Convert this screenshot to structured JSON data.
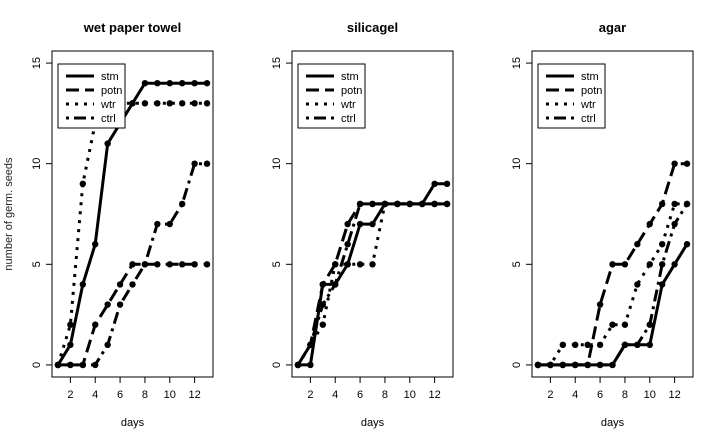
{
  "chart_data": [
    {
      "type": "line",
      "title": "wet paper towel",
      "xlabel": "days",
      "ylabel": "number of germ. seeds",
      "x": [
        1,
        2,
        3,
        4,
        5,
        6,
        7,
        8,
        9,
        10,
        11,
        12,
        13
      ],
      "xlim": [
        1,
        13
      ],
      "ylim": [
        0,
        15
      ],
      "xticks": [
        2,
        4,
        6,
        8,
        10,
        12
      ],
      "yticks": [
        0,
        5,
        10,
        15
      ],
      "grid": false,
      "legend_position": "top-left",
      "series": [
        {
          "name": "stm",
          "values": [
            0,
            1,
            4,
            6,
            11,
            12,
            13,
            14,
            14,
            14,
            14,
            14,
            14
          ]
        },
        {
          "name": "potn",
          "values": [
            0,
            0,
            0,
            2,
            3,
            4,
            5,
            5,
            5,
            5,
            5,
            5,
            5
          ]
        },
        {
          "name": "wtr",
          "values": [
            0,
            2,
            9,
            12,
            13,
            13,
            13,
            13,
            13,
            13,
            13,
            13,
            13
          ]
        },
        {
          "name": "ctrl",
          "values": [
            0,
            0,
            0,
            0,
            1,
            3,
            4,
            5,
            7,
            7,
            8,
            10,
            10
          ]
        }
      ]
    },
    {
      "type": "line",
      "title": "silicagel",
      "xlabel": "days",
      "x": [
        1,
        2,
        3,
        4,
        5,
        6,
        7,
        8,
        9,
        10,
        11,
        12,
        13
      ],
      "xlim": [
        1,
        13
      ],
      "ylim": [
        0,
        15
      ],
      "xticks": [
        2,
        4,
        6,
        8,
        10,
        12
      ],
      "yticks": [
        0,
        5,
        10,
        15
      ],
      "grid": false,
      "legend_position": "top-left",
      "series": [
        {
          "name": "stm",
          "values": [
            0,
            0,
            4,
            4,
            5,
            7,
            7,
            8,
            8,
            8,
            8,
            9,
            9
          ]
        },
        {
          "name": "potn",
          "values": [
            0,
            1,
            4,
            5,
            7,
            8,
            8,
            8,
            8,
            8,
            8,
            8,
            8
          ]
        },
        {
          "name": "wtr",
          "values": [
            0,
            1,
            2,
            5,
            5,
            5,
            5,
            8,
            8,
            8,
            8,
            8,
            8
          ]
        },
        {
          "name": "ctrl",
          "values": [
            0,
            1,
            3,
            4,
            6,
            8,
            8,
            8,
            8,
            8,
            8,
            8,
            8
          ]
        }
      ]
    },
    {
      "type": "line",
      "title": "agar",
      "xlabel": "days",
      "x": [
        1,
        2,
        3,
        4,
        5,
        6,
        7,
        8,
        9,
        10,
        11,
        12,
        13
      ],
      "xlim": [
        1,
        13
      ],
      "ylim": [
        0,
        15
      ],
      "xticks": [
        2,
        4,
        6,
        8,
        10,
        12
      ],
      "yticks": [
        0,
        5,
        10,
        15
      ],
      "grid": false,
      "legend_position": "top-left",
      "series": [
        {
          "name": "stm",
          "values": [
            0,
            0,
            0,
            0,
            0,
            0,
            0,
            1,
            1,
            1,
            4,
            5,
            6
          ]
        },
        {
          "name": "potn",
          "values": [
            0,
            0,
            0,
            0,
            0,
            3,
            5,
            5,
            6,
            7,
            8,
            10,
            10
          ]
        },
        {
          "name": "wtr",
          "values": [
            0,
            0,
            1,
            1,
            1,
            1,
            2,
            2,
            4,
            5,
            6,
            8,
            8
          ]
        },
        {
          "name": "ctrl",
          "values": [
            0,
            0,
            0,
            0,
            0,
            0,
            0,
            1,
            1,
            2,
            5,
            7,
            8
          ]
        }
      ]
    }
  ]
}
